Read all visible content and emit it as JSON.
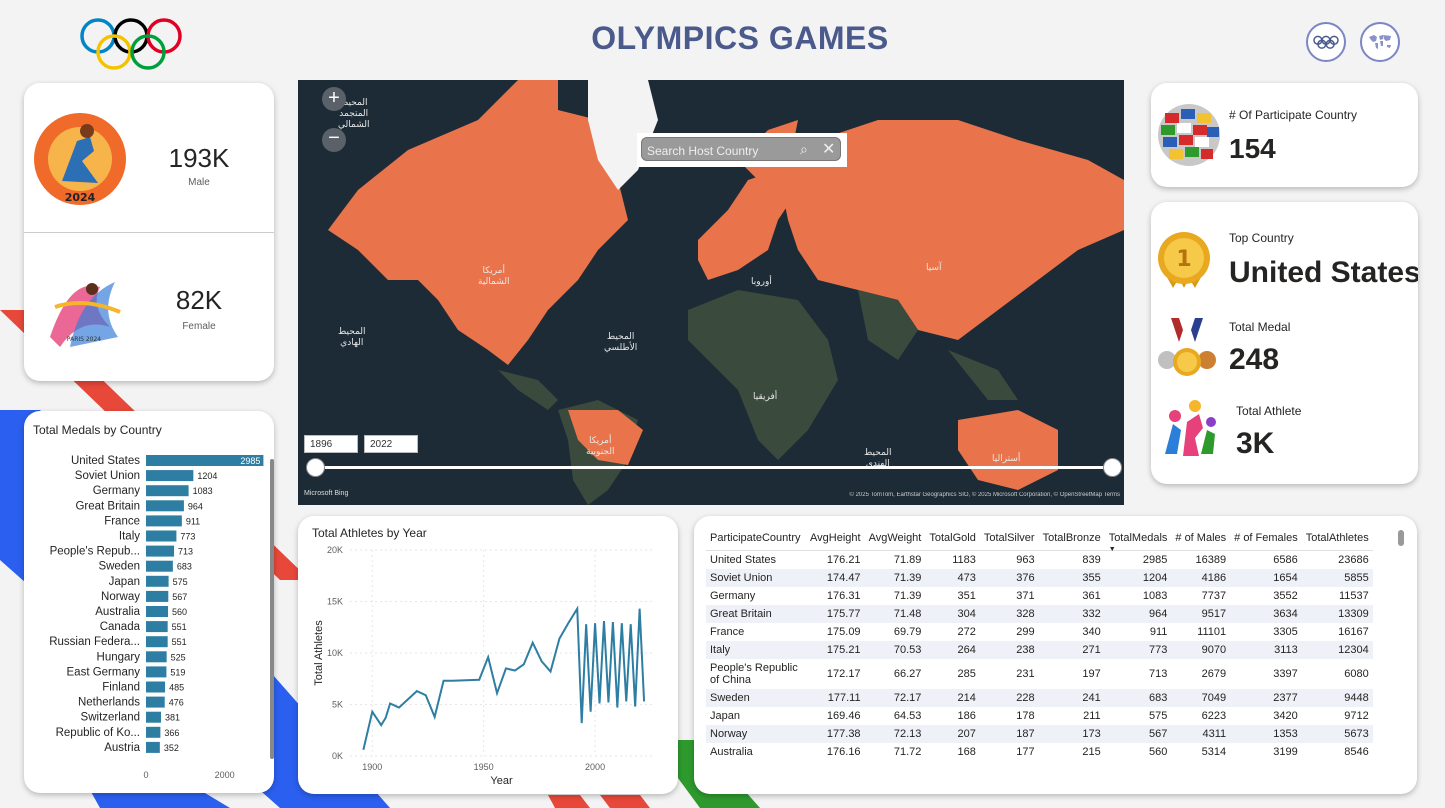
{
  "header": {
    "title": "OLYMPICS GAMES"
  },
  "nav": {
    "olympic_rings_button": "olympic-rings-icon",
    "world_map_button": "world-map-icon"
  },
  "gender": {
    "male_value": "193K",
    "male_label": "Male",
    "female_value": "82K",
    "female_label": "Female"
  },
  "map": {
    "search_placeholder": "Search Host Country",
    "year_start": "1896",
    "year_end": "2022",
    "bing_label": "Microsoft Bing",
    "attribution": "© 2025 TomTom, Earthstar Geographics SIO, © 2025 Microsoft Corporation, © OpenStreetMap Terms",
    "labels": {
      "north_america": "أمريكا\nالشمالية",
      "south_america": "أمريكا\nالجنوبية",
      "europe": "أوروبا",
      "asia": "آسيا",
      "africa": "أفريقيا",
      "australia": "أستراليا",
      "atlantic": "المحيط\nالأطلسي",
      "pacific": "المحيط\nالهادي",
      "indian": "المحيط\nالهندي",
      "arctic": "المحيط\nالمتجمد\nالشمالي"
    },
    "colors": {
      "highlight": "#e9734a",
      "ocean": "#1c2b36",
      "land": "#3a4a3c"
    }
  },
  "kpis": {
    "participate_label": "# Of Participate Country",
    "participate_value": "154",
    "top_country_label": "Top Country",
    "top_country_value": "United States",
    "total_medal_label": "Total Medal",
    "total_medal_value": "248",
    "total_athlete_label": "Total Athlete",
    "total_athlete_value": "3K"
  },
  "colors": {
    "bar": "#2e7ea3",
    "bar_selected": "#2e7ea3",
    "title": "#4a5a8c",
    "line": "#2e7ea3"
  },
  "chart_data": [
    {
      "type": "bar",
      "title": "Total Medals by Country",
      "categories": [
        "United States",
        "Soviet Union",
        "Germany",
        "Great Britain",
        "France",
        "Italy",
        "People's Repub...",
        "Sweden",
        "Japan",
        "Norway",
        "Australia",
        "Canada",
        "Russian Federa...",
        "Hungary",
        "East Germany",
        "Finland",
        "Netherlands",
        "Switzerland",
        "Republic of Ko...",
        "Austria"
      ],
      "values": [
        2985,
        1204,
        1083,
        964,
        911,
        773,
        713,
        683,
        575,
        567,
        560,
        551,
        551,
        525,
        519,
        485,
        476,
        381,
        366,
        352
      ],
      "xlim": [
        0,
        3000
      ],
      "xticks": [
        "0",
        "2000"
      ]
    },
    {
      "type": "line",
      "title": "Total Athletes by Year",
      "xlabel": "Year",
      "ylabel": "Total Athletes",
      "xlim": [
        1890,
        2026
      ],
      "ylim": [
        0,
        20000
      ],
      "xticks": [
        "1900",
        "1950",
        "2000"
      ],
      "yticks": [
        "0K",
        "5K",
        "10K",
        "15K",
        "20K"
      ],
      "x": [
        1896,
        1900,
        1904,
        1906,
        1908,
        1912,
        1920,
        1924,
        1928,
        1932,
        1936,
        1948,
        1952,
        1956,
        1960,
        1964,
        1968,
        1972,
        1976,
        1980,
        1984,
        1988,
        1992,
        1994,
        1996,
        1998,
        2000,
        2002,
        2004,
        2006,
        2008,
        2010,
        2012,
        2014,
        2016,
        2018,
        2020,
        2022
      ],
      "y": [
        600,
        4300,
        3000,
        3700,
        5100,
        4700,
        6300,
        5900,
        3800,
        7300,
        7300,
        7400,
        9600,
        6100,
        8500,
        8300,
        8900,
        11000,
        9200,
        8200,
        11400,
        12900,
        14300,
        3200,
        12800,
        4300,
        12900,
        5100,
        13100,
        5200,
        13000,
        4700,
        12900,
        5300,
        12800,
        4800,
        14300,
        5300
      ]
    }
  ],
  "table": {
    "columns": [
      "ParticipateCountry",
      "AvgHeight",
      "AvgWeight",
      "TotalGold",
      "TotalSilver",
      "TotalBronze",
      "TotalMedals",
      "# of Males",
      "# of Females",
      "TotalAthletes"
    ],
    "rows": [
      [
        "United States",
        "176.21",
        "71.89",
        "1183",
        "963",
        "839",
        "2985",
        "16389",
        "6586",
        "23686"
      ],
      [
        "Soviet Union",
        "174.47",
        "71.39",
        "473",
        "376",
        "355",
        "1204",
        "4186",
        "1654",
        "5855"
      ],
      [
        "Germany",
        "176.31",
        "71.39",
        "351",
        "371",
        "361",
        "1083",
        "7737",
        "3552",
        "11537"
      ],
      [
        "Great Britain",
        "175.77",
        "71.48",
        "304",
        "328",
        "332",
        "964",
        "9517",
        "3634",
        "13309"
      ],
      [
        "France",
        "175.09",
        "69.79",
        "272",
        "299",
        "340",
        "911",
        "11101",
        "3305",
        "16167"
      ],
      [
        "Italy",
        "175.21",
        "70.53",
        "264",
        "238",
        "271",
        "773",
        "9070",
        "3113",
        "12304"
      ],
      [
        "People's Republic of China",
        "172.17",
        "66.27",
        "285",
        "231",
        "197",
        "713",
        "2679",
        "3397",
        "6080"
      ],
      [
        "Sweden",
        "177.11",
        "72.17",
        "214",
        "228",
        "241",
        "683",
        "7049",
        "2377",
        "9448"
      ],
      [
        "Japan",
        "169.46",
        "64.53",
        "186",
        "178",
        "211",
        "575",
        "6223",
        "3420",
        "9712"
      ],
      [
        "Norway",
        "177.38",
        "72.13",
        "207",
        "187",
        "173",
        "567",
        "4311",
        "1353",
        "5673"
      ],
      [
        "Australia",
        "176.16",
        "71.72",
        "168",
        "177",
        "215",
        "560",
        "5314",
        "3199",
        "8546"
      ]
    ]
  }
}
